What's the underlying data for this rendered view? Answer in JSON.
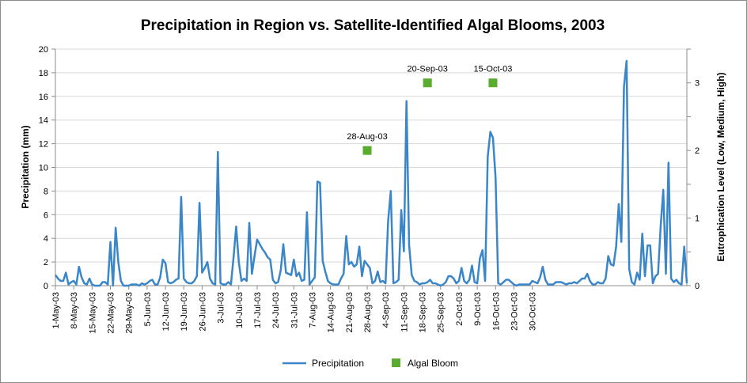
{
  "chart_data": {
    "type": "line",
    "title": "Precipitation in Region vs. Satellite-Identified Algal Blooms, 2003",
    "xlabel": "",
    "ylabel": "Precipitation (mm)",
    "y2label": "Eutrophication Level (Low, Medium, High)",
    "ylim": [
      0,
      20
    ],
    "y2lim": [
      0,
      3.5
    ],
    "y_ticks": [
      "0",
      "2",
      "4",
      "6",
      "8",
      "10",
      "12",
      "14",
      "16",
      "18",
      "20"
    ],
    "y2_ticks": [
      "0",
      "1",
      "2",
      "3"
    ],
    "x_tick_labels": [
      "1-May-03",
      "8-May-03",
      "15-May-03",
      "22-May-03",
      "29-May-03",
      "5-Jun-03",
      "12-Jun-03",
      "19-Jun-03",
      "26-Jun-03",
      "3-Jul-03",
      "10-Jul-03",
      "17-Jul-03",
      "24-Jul-03",
      "31-Jul-03",
      "7-Aug-03",
      "14-Aug-03",
      "21-Aug-03",
      "28-Aug-03",
      "4-Sep-03",
      "11-Sep-03",
      "18-Sep-03",
      "25-Sep-03",
      "2-Oct-03",
      "9-Oct-03",
      "16-Oct-03",
      "23-Oct-03",
      "30-Oct-03"
    ],
    "grid": true,
    "legend_position": "bottom",
    "series": [
      {
        "name": "Precipitation",
        "type": "line",
        "axis": "left",
        "color": "#3a86c8",
        "x_start": "1-May-03",
        "step": "1 day",
        "values": [
          0.9,
          0.6,
          0.4,
          0.4,
          1.1,
          0.1,
          0.3,
          0.4,
          0.1,
          1.6,
          0.7,
          0.2,
          0.1,
          0.6,
          0.1,
          0.0,
          0.0,
          0.0,
          0.3,
          0.3,
          0.1,
          3.7,
          0.0,
          4.9,
          2.0,
          0.4,
          0.0,
          0.0,
          0.0,
          0.1,
          0.1,
          0.1,
          0.0,
          0.2,
          0.1,
          0.2,
          0.4,
          0.5,
          0.1,
          0.1,
          0.7,
          2.2,
          1.9,
          0.3,
          0.2,
          0.3,
          0.5,
          0.6,
          7.5,
          0.6,
          0.3,
          0.2,
          0.2,
          0.4,
          0.8,
          7.0,
          1.1,
          1.5,
          2.0,
          0.6,
          0.2,
          0.1,
          11.3,
          0.2,
          0.1,
          0.1,
          0.3,
          0.1,
          2.4,
          5.0,
          2.0,
          0.4,
          0.6,
          0.4,
          5.3,
          1.0,
          2.5,
          3.9,
          3.5,
          3.1,
          2.8,
          2.4,
          2.2,
          0.5,
          0.2,
          0.3,
          1.3,
          3.5,
          1.1,
          1.0,
          0.9,
          2.2,
          0.8,
          1.1,
          0.4,
          0.5,
          6.2,
          0.1,
          0.4,
          0.7,
          8.8,
          8.7,
          2.1,
          1.2,
          0.4,
          0.2,
          0.1,
          0.1,
          0.1,
          0.6,
          1.0,
          4.2,
          1.8,
          2.0,
          1.6,
          1.8,
          3.3,
          0.8,
          2.1,
          1.8,
          1.5,
          0.2,
          0.4,
          1.2,
          0.3,
          0.4,
          0.2,
          5.5,
          8.0,
          0.2,
          0.3,
          0.5,
          6.4,
          2.9,
          15.6,
          3.4,
          0.9,
          0.4,
          0.3,
          0.1,
          0.2,
          0.2,
          0.3,
          0.5,
          0.2,
          0.2,
          0.1,
          0.0,
          0.1,
          0.3,
          0.8,
          0.8,
          0.6,
          0.2,
          0.4,
          1.5,
          0.4,
          0.2,
          0.5,
          1.7,
          0.3,
          0.2,
          2.3,
          3.0,
          0.4,
          10.9,
          13.0,
          12.5,
          9.1,
          0.2,
          0.1,
          0.3,
          0.5,
          0.5,
          0.3,
          0.1,
          0.0,
          0.1,
          0.1,
          0.1,
          0.1,
          0.1,
          0.4,
          0.3,
          0.2,
          0.7,
          1.6,
          0.5,
          0.1,
          0.1,
          0.1,
          0.3,
          0.3,
          0.3,
          0.2,
          0.1,
          0.2,
          0.2,
          0.3,
          0.2,
          0.4,
          0.6,
          0.6,
          1.0,
          0.4,
          0.1,
          0.1,
          0.3,
          0.2,
          0.2,
          0.6,
          2.5,
          1.8,
          1.7,
          3.3,
          6.9,
          3.7,
          16.8,
          19.0,
          1.4,
          0.3,
          0.1,
          1.1,
          0.5,
          4.4,
          0.8,
          3.4,
          3.4,
          0.2,
          0.8,
          1.0,
          5.0,
          8.1,
          1.0,
          10.4,
          0.6,
          0.3,
          0.5,
          0.2,
          0.1,
          3.3,
          0.2
        ]
      },
      {
        "name": "Algal Bloom",
        "type": "scatter",
        "axis": "right",
        "color": "#5aac2e",
        "points": [
          {
            "x": "28-Aug-03",
            "y": 2,
            "label": "28-Aug-03"
          },
          {
            "x": "20-Sep-03",
            "y": 3,
            "label": "20-Sep-03"
          },
          {
            "x": "15-Oct-03",
            "y": 3,
            "label": "15-Oct-03"
          }
        ]
      }
    ]
  }
}
